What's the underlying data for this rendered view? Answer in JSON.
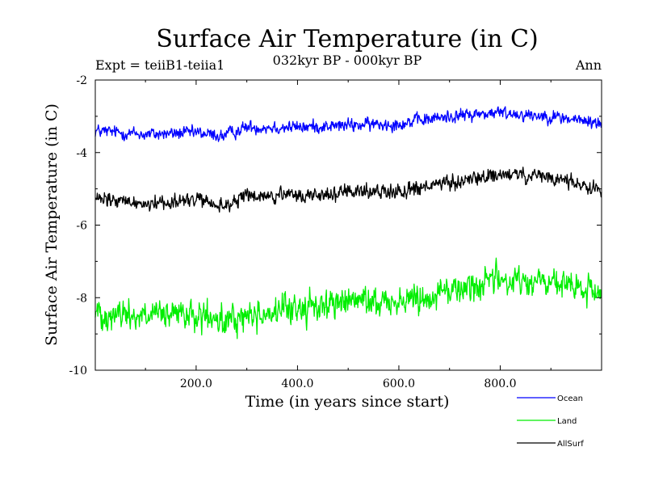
{
  "chart_data": {
    "type": "line",
    "title": "Surface Air Temperature (in C)",
    "subtitle": "032kyr BP - 000kyr BP",
    "expt_label": "Expt = teiiB1-teiia1",
    "period_label": "Ann",
    "xlabel": "Time (in years since start)",
    "ylabel": "Surface Air Temperature (in C)",
    "xlim": [
      1,
      1000
    ],
    "ylim": [
      -10,
      -2
    ],
    "x_ticks": [
      200,
      400,
      600,
      800
    ],
    "x_tick_labels": [
      "200.0",
      "400.0",
      "600.0",
      "800.0"
    ],
    "y_ticks": [
      -10,
      -8,
      -6,
      -4,
      -2
    ],
    "y_tick_labels": [
      "-10",
      "-8",
      "-6",
      "-4",
      "-2"
    ],
    "grid": false,
    "legend_position": "bottom-right, below plot",
    "series": [
      {
        "name": "Ocean",
        "color": "#0000ff",
        "anchor_x": [
          1,
          100,
          200,
          250,
          300,
          400,
          500,
          600,
          700,
          800,
          900,
          1000
        ],
        "anchor_y": [
          -3.4,
          -3.5,
          -3.45,
          -3.55,
          -3.3,
          -3.3,
          -3.25,
          -3.2,
          -3.0,
          -2.9,
          -3.0,
          -3.2
        ],
        "noise_amplitude": 0.12
      },
      {
        "name": "Land",
        "color": "#00ee00",
        "anchor_x": [
          1,
          100,
          200,
          250,
          300,
          400,
          500,
          600,
          700,
          800,
          900,
          1000
        ],
        "anchor_y": [
          -8.4,
          -8.5,
          -8.5,
          -8.7,
          -8.5,
          -8.3,
          -8.1,
          -8.1,
          -7.8,
          -7.5,
          -7.6,
          -7.9
        ],
        "noise_amplitude": 0.28
      },
      {
        "name": "AllSurf",
        "color": "#000000",
        "anchor_x": [
          1,
          100,
          200,
          250,
          300,
          400,
          500,
          600,
          700,
          800,
          900,
          1000
        ],
        "anchor_y": [
          -5.3,
          -5.4,
          -5.3,
          -5.5,
          -5.2,
          -5.2,
          -5.1,
          -5.05,
          -4.85,
          -4.6,
          -4.7,
          -5.0
        ],
        "noise_amplitude": 0.14
      }
    ]
  }
}
